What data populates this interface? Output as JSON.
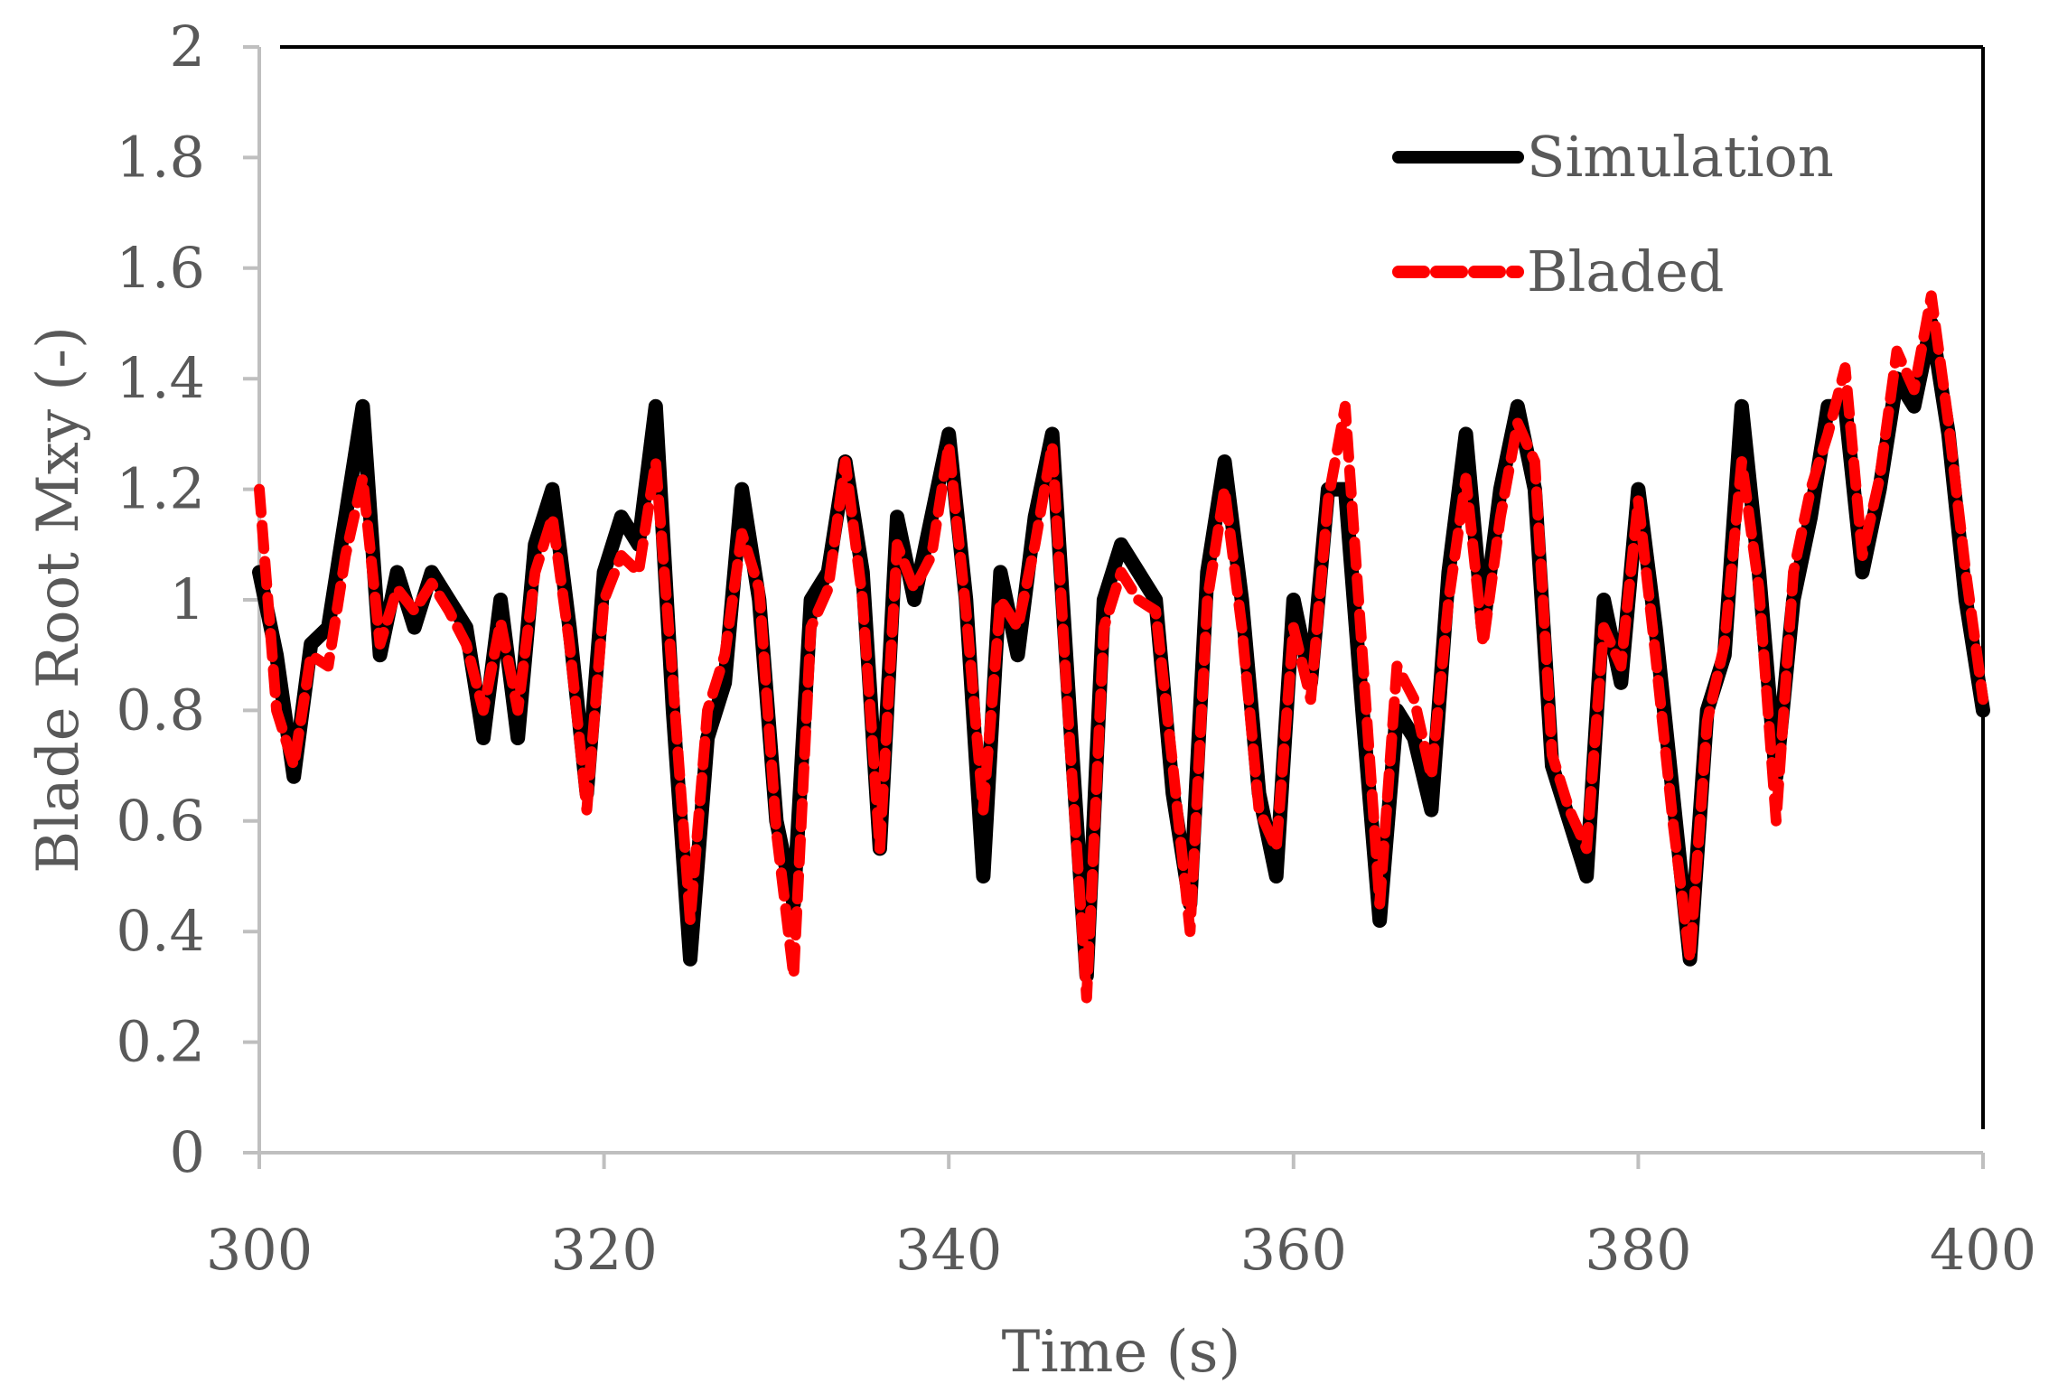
{
  "chart_data": {
    "type": "line",
    "title": "",
    "xlabel": "Time (s)",
    "ylabel": "Blade Root Mxy (-)",
    "xlim": [
      300,
      400
    ],
    "ylim": [
      0,
      2
    ],
    "grid": false,
    "legend_position": "top-right",
    "x_ticks": [
      300,
      320,
      340,
      360,
      380,
      400
    ],
    "x_tick_labels": [
      "300",
      "320",
      "340",
      "360",
      "380",
      "400"
    ],
    "y_ticks": [
      0,
      0.2,
      0.4,
      0.6,
      0.8,
      1,
      1.2,
      1.4,
      1.6,
      1.8,
      2
    ],
    "y_tick_labels": [
      "0",
      "0.2",
      "0.4",
      "0.6",
      "0.8",
      "1",
      "1.2",
      "1.4",
      "1.6",
      "1.8",
      "2"
    ],
    "series": [
      {
        "name": "Simulation",
        "color": "#000000",
        "style": "solid",
        "x": [
          300,
          301,
          302,
          303,
          304,
          305,
          306,
          307,
          308,
          309,
          310,
          311,
          312,
          313,
          314,
          315,
          316,
          317,
          318,
          319,
          320,
          321,
          322,
          323,
          324,
          325,
          326,
          327,
          328,
          329,
          330,
          331,
          332,
          333,
          334,
          335,
          336,
          337,
          338,
          339,
          340,
          341,
          342,
          343,
          344,
          345,
          346,
          347,
          348,
          349,
          350,
          351,
          352,
          353,
          354,
          355,
          356,
          357,
          358,
          359,
          360,
          361,
          362,
          363,
          364,
          365,
          366,
          367,
          368,
          369,
          370,
          371,
          372,
          373,
          374,
          375,
          376,
          377,
          378,
          379,
          380,
          381,
          382,
          383,
          384,
          385,
          386,
          387,
          388,
          389,
          390,
          391,
          392,
          393,
          394,
          395,
          396,
          397,
          398,
          399,
          400
        ],
        "values": [
          1.05,
          0.9,
          0.68,
          0.92,
          0.95,
          1.15,
          1.35,
          0.9,
          1.05,
          0.95,
          1.05,
          1.0,
          0.95,
          0.75,
          1.0,
          0.75,
          1.1,
          1.2,
          0.95,
          0.65,
          1.05,
          1.15,
          1.1,
          1.35,
          0.8,
          0.35,
          0.75,
          0.85,
          1.2,
          1.0,
          0.6,
          0.45,
          1.0,
          1.05,
          1.25,
          1.05,
          0.55,
          1.15,
          1.0,
          1.15,
          1.3,
          1.0,
          0.5,
          1.05,
          0.9,
          1.15,
          1.3,
          0.8,
          0.32,
          1.0,
          1.1,
          1.05,
          1.0,
          0.65,
          0.45,
          1.05,
          1.25,
          1.0,
          0.65,
          0.5,
          1.0,
          0.85,
          1.2,
          1.2,
          0.8,
          0.42,
          0.8,
          0.75,
          0.62,
          1.05,
          1.3,
          0.95,
          1.2,
          1.35,
          1.2,
          0.7,
          0.6,
          0.5,
          1.0,
          0.85,
          1.2,
          0.95,
          0.65,
          0.35,
          0.8,
          0.9,
          1.35,
          1.05,
          0.68,
          1.0,
          1.15,
          1.35,
          1.35,
          1.05,
          1.2,
          1.4,
          1.35,
          1.5,
          1.3,
          1.0,
          0.8
        ]
      },
      {
        "name": "Bladed",
        "color": "#ff0000",
        "style": "dashed",
        "x": [
          300,
          301,
          302,
          303,
          304,
          305,
          306,
          307,
          308,
          309,
          310,
          311,
          312,
          313,
          314,
          315,
          316,
          317,
          318,
          319,
          320,
          321,
          322,
          323,
          324,
          325,
          326,
          327,
          328,
          329,
          330,
          331,
          332,
          333,
          334,
          335,
          336,
          337,
          338,
          339,
          340,
          341,
          342,
          343,
          344,
          345,
          346,
          347,
          348,
          349,
          350,
          351,
          352,
          353,
          354,
          355,
          356,
          357,
          358,
          359,
          360,
          361,
          362,
          363,
          364,
          365,
          366,
          367,
          368,
          369,
          370,
          371,
          372,
          373,
          374,
          375,
          376,
          377,
          378,
          379,
          380,
          381,
          382,
          383,
          384,
          385,
          386,
          387,
          388,
          389,
          390,
          391,
          392,
          393,
          394,
          395,
          396,
          397,
          398,
          399,
          400
        ],
        "values": [
          1.2,
          0.8,
          0.7,
          0.9,
          0.88,
          1.08,
          1.22,
          0.92,
          1.02,
          0.98,
          1.03,
          0.98,
          0.92,
          0.8,
          0.96,
          0.8,
          1.05,
          1.15,
          0.92,
          0.62,
          1.0,
          1.08,
          1.05,
          1.25,
          0.85,
          0.42,
          0.8,
          0.9,
          1.12,
          1.02,
          0.58,
          0.32,
          0.95,
          1.02,
          1.25,
          1.0,
          0.55,
          1.1,
          1.02,
          1.08,
          1.28,
          0.98,
          0.62,
          1.0,
          0.95,
          1.1,
          1.28,
          0.75,
          0.28,
          0.95,
          1.05,
          1.0,
          0.98,
          0.7,
          0.4,
          1.0,
          1.2,
          0.95,
          0.62,
          0.55,
          0.95,
          0.82,
          1.18,
          1.35,
          0.9,
          0.45,
          0.88,
          0.82,
          0.68,
          1.0,
          1.22,
          0.92,
          1.15,
          1.32,
          1.25,
          0.72,
          0.62,
          0.55,
          0.95,
          0.88,
          1.18,
          0.9,
          0.6,
          0.35,
          0.78,
          0.92,
          1.25,
          1.02,
          0.6,
          1.05,
          1.2,
          1.3,
          1.42,
          1.08,
          1.22,
          1.45,
          1.38,
          1.55,
          1.32,
          1.05,
          0.82
        ]
      }
    ]
  }
}
